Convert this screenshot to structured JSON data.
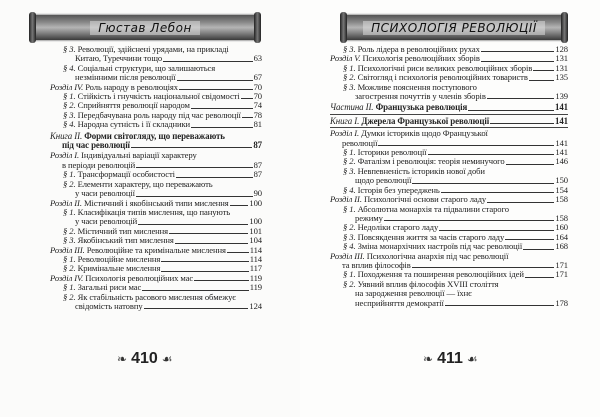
{
  "left_page": {
    "header": "Гюстав Лебон",
    "page_number": "410",
    "entries": [
      {
        "level": "section",
        "label": "§ 3.",
        "lines": [
          "Революції, здійснені урядами, на прикладі",
          "Китаю, Туреччини тощо"
        ],
        "page": "63"
      },
      {
        "level": "section",
        "label": "§ 4.",
        "lines": [
          "Соціальні структури, що залишаються",
          "незмінними після революції"
        ],
        "page": "67"
      },
      {
        "level": "chapter",
        "label": "Розділ IV.",
        "lines": [
          "Роль народу в революціях"
        ],
        "page": "70"
      },
      {
        "level": "section",
        "label": "§ 1.",
        "lines": [
          "Стійкість і гнучкість національної свідомості"
        ],
        "page": "70"
      },
      {
        "level": "section",
        "label": "§ 2.",
        "lines": [
          "Сприйняття революції народом"
        ],
        "page": "74"
      },
      {
        "level": "section",
        "label": "§ 3.",
        "lines": [
          "Передбачувана роль народу під час революції"
        ],
        "page": "78"
      },
      {
        "level": "section",
        "label": "§ 4.",
        "lines": [
          "Народна сутність і її складники"
        ],
        "page": "81"
      },
      {
        "level": "book",
        "label": "Книга II.",
        "lines": [
          "Форми світогляду, що переважають",
          "під час революції"
        ],
        "page": "87"
      },
      {
        "level": "chapter",
        "label": "Розділ I.",
        "lines": [
          "Індивідуальні варіації характеру",
          "в періоди революцій"
        ],
        "page": "87"
      },
      {
        "level": "section",
        "label": "§ 1.",
        "lines": [
          "Трансформації особистості"
        ],
        "page": "87"
      },
      {
        "level": "section",
        "label": "§ 2.",
        "lines": [
          "Елементи характеру, що переважають",
          "у часи революції"
        ],
        "page": "90"
      },
      {
        "level": "chapter",
        "label": "Розділ II.",
        "lines": [
          "Містичний і якобінський типи мислення"
        ],
        "page": "100"
      },
      {
        "level": "section",
        "label": "§ 1.",
        "lines": [
          "Класифікація типів мислення, що панують",
          "у часи революцій"
        ],
        "page": "100"
      },
      {
        "level": "section",
        "label": "§ 2.",
        "lines": [
          "Містичний тип мислення"
        ],
        "page": "101"
      },
      {
        "level": "section",
        "label": "§ 3.",
        "lines": [
          "Якобінський тип мислення"
        ],
        "page": "104"
      },
      {
        "level": "chapter",
        "label": "Розділ III.",
        "lines": [
          "Революційне та кримінальне мислення"
        ],
        "page": "114"
      },
      {
        "level": "section",
        "label": "§ 1.",
        "lines": [
          "Революційне мислення"
        ],
        "page": "114"
      },
      {
        "level": "section",
        "label": "§ 2.",
        "lines": [
          "Кримінальне мислення"
        ],
        "page": "117"
      },
      {
        "level": "chapter",
        "label": "Розділ IV.",
        "lines": [
          "Психологія революційних мас"
        ],
        "page": "119"
      },
      {
        "level": "section",
        "label": "§ 1.",
        "lines": [
          "Загальні риси мас"
        ],
        "page": "119"
      },
      {
        "level": "section",
        "label": "§ 2.",
        "lines": [
          "Як стабільність расового мислення обмежує",
          "свідомість натовпу"
        ],
        "page": "124"
      }
    ]
  },
  "right_page": {
    "header": "ПСИХОЛОГІЯ РЕВОЛЮЦІЇ",
    "page_number": "411",
    "entries": [
      {
        "level": "section",
        "label": "§ 3.",
        "lines": [
          "Роль лідера в революційних рухах"
        ],
        "page": "128"
      },
      {
        "level": "chapter",
        "label": "Розділ V.",
        "lines": [
          "Психологія революційних зборів"
        ],
        "page": "131"
      },
      {
        "level": "section",
        "label": "§ 1.",
        "lines": [
          "Психологічні риси великих революційних зборів"
        ],
        "page": "131"
      },
      {
        "level": "section",
        "label": "§ 2.",
        "lines": [
          "Світогляд і психологія революційних товариств"
        ],
        "page": "135"
      },
      {
        "level": "section",
        "label": "§ 3.",
        "lines": [
          "Можливе пояснення поступового",
          "загострення почуттів у членів зборів"
        ],
        "page": "139"
      },
      {
        "level": "part",
        "label": "Частина II.",
        "lines": [
          "Французька революція"
        ],
        "page": "141"
      },
      {
        "level": "book",
        "label": "Книга I.",
        "lines": [
          "Джерела Французької революції"
        ],
        "page": "141"
      },
      {
        "level": "chapter",
        "label": "Розділ I.",
        "lines": [
          "Думки істориків щодо Французької",
          "революції"
        ],
        "page": "141"
      },
      {
        "level": "section",
        "label": "§ 1.",
        "lines": [
          "Історики революції"
        ],
        "page": "141"
      },
      {
        "level": "section",
        "label": "§ 2.",
        "lines": [
          "Фаталізм і революція: теорія неминучого"
        ],
        "page": "146"
      },
      {
        "level": "section",
        "label": "§ 3.",
        "lines": [
          "Невпевненість істориків нової доби",
          "щодо революції"
        ],
        "page": "150"
      },
      {
        "level": "section",
        "label": "§ 4.",
        "lines": [
          "Історія без упереджень"
        ],
        "page": "154"
      },
      {
        "level": "chapter",
        "label": "Розділ II.",
        "lines": [
          "Психологічні основи старого ладу"
        ],
        "page": "158"
      },
      {
        "level": "section",
        "label": "§ 1.",
        "lines": [
          "Абсолютна монархія та підвалини старого",
          "режиму"
        ],
        "page": "158"
      },
      {
        "level": "section",
        "label": "§ 2.",
        "lines": [
          "Недоліки старого ладу"
        ],
        "page": "160"
      },
      {
        "level": "section",
        "label": "§ 3.",
        "lines": [
          "Повсякдення життя за часів старого ладу"
        ],
        "page": "164"
      },
      {
        "level": "section",
        "label": "§ 4.",
        "lines": [
          "Зміна монархічних настроїв під час революції"
        ],
        "page": "168"
      },
      {
        "level": "chapter",
        "label": "Розділ III.",
        "lines": [
          "Психологічна анархія під час революції",
          "та вплив філософів"
        ],
        "page": "171"
      },
      {
        "level": "section",
        "label": "§ 1.",
        "lines": [
          "Походження та поширення революційних ідей"
        ],
        "page": "171"
      },
      {
        "level": "section",
        "label": "§ 2.",
        "lines": [
          "Уявний вплив філософів XVIII століття",
          "на зародження революції — їхнє",
          "несприйняття демократії"
        ],
        "page": "178"
      }
    ]
  }
}
